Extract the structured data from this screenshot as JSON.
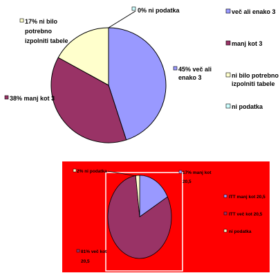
{
  "chart_data": [
    {
      "type": "pie",
      "title": "",
      "slices": [
        {
          "legend": "več ali enako 3",
          "label": [
            "45% več ali",
            "enako 3"
          ],
          "value": 45,
          "color": "#9999ff"
        },
        {
          "legend": "manj kot 3",
          "label": [
            "38% manj kot 3"
          ],
          "value": 38,
          "color": "#993366"
        },
        {
          "legend": "ni bilo potrebno izpolniti tabele",
          "label": [
            "17% ni bilo",
            "potrebno",
            "izpolniti tabele"
          ],
          "value": 17,
          "color": "#ffffcc"
        },
        {
          "legend": "ni podatka",
          "label": [
            "0% ni podatka"
          ],
          "value": 0,
          "color": "#ccffff"
        }
      ],
      "legend_lines": [
        [
          "več ali enako 3"
        ],
        [
          "manj kot 3"
        ],
        [
          "ni bilo potrebno",
          "izpolniti tabele"
        ],
        [
          "ni podatka"
        ]
      ],
      "legend_position": "right",
      "background": "#ffffff"
    },
    {
      "type": "pie",
      "title": "",
      "slices": [
        {
          "legend": "ITT manj kot 20,5",
          "label": [
            "17% manj kot",
            "20,5"
          ],
          "value": 17,
          "color": "#9999ff"
        },
        {
          "legend": "ITT več kot 20,5",
          "label": [
            "81% več kot",
            "20,5"
          ],
          "value": 81,
          "color": "#993366"
        },
        {
          "legend": "ni podatka",
          "label": [
            "2% ni podatka"
          ],
          "value": 2,
          "color": "#ffffcc"
        }
      ],
      "legend_position": "right",
      "background": "#ff0000"
    }
  ]
}
